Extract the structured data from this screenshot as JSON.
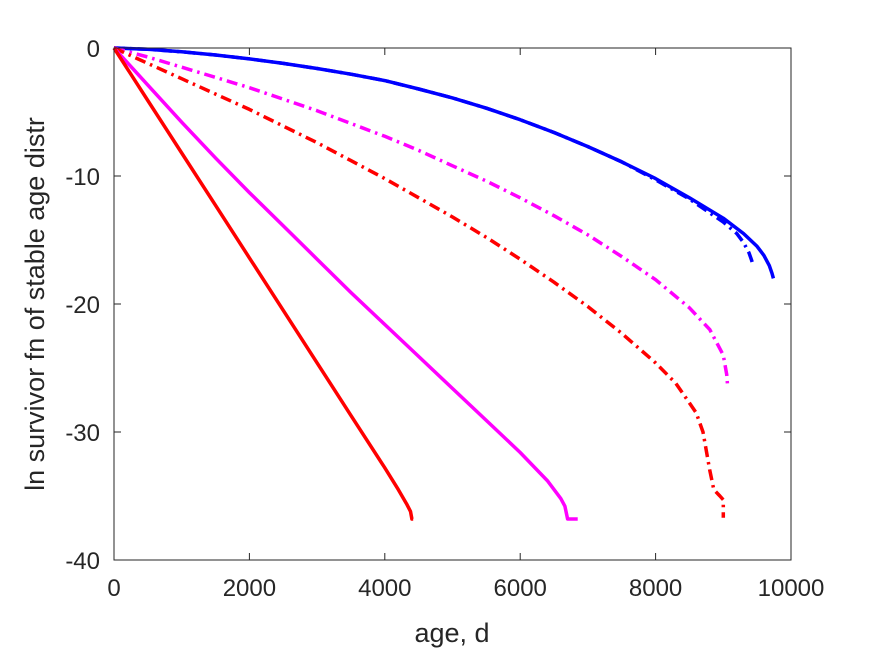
{
  "chart_data": {
    "type": "line",
    "title": "",
    "xlabel": "age, d",
    "ylabel": "ln survivor fn of stable age distr",
    "xlim": [
      0,
      10000
    ],
    "ylim": [
      -40,
      0
    ],
    "xticks": [
      0,
      2000,
      4000,
      6000,
      8000,
      10000
    ],
    "yticks": [
      -40,
      -30,
      -20,
      -10,
      0
    ],
    "xtick_labels": [
      "0",
      "2000",
      "4000",
      "6000",
      "8000",
      "10000"
    ],
    "ytick_labels": [
      "-40",
      "-30",
      "-20",
      "-10",
      "0"
    ],
    "grid": false,
    "legend": "none",
    "series": [
      {
        "color": "#0000ff",
        "style": "solid",
        "points": [
          [
            0,
            0
          ],
          [
            500,
            -0.1
          ],
          [
            1000,
            -0.3
          ],
          [
            1500,
            -0.55
          ],
          [
            2000,
            -0.85
          ],
          [
            2500,
            -1.2
          ],
          [
            3000,
            -1.6
          ],
          [
            3500,
            -2.05
          ],
          [
            4000,
            -2.55
          ],
          [
            4500,
            -3.2
          ],
          [
            5000,
            -3.9
          ],
          [
            5500,
            -4.7
          ],
          [
            6000,
            -5.6
          ],
          [
            6500,
            -6.6
          ],
          [
            7000,
            -7.7
          ],
          [
            7500,
            -8.9
          ],
          [
            8000,
            -10.2
          ],
          [
            8500,
            -11.7
          ],
          [
            9000,
            -13.3
          ],
          [
            9300,
            -14.5
          ],
          [
            9500,
            -15.5
          ],
          [
            9600,
            -16.2
          ],
          [
            9680,
            -17.0
          ],
          [
            9720,
            -17.6
          ],
          [
            9740,
            -18.0
          ]
        ]
      },
      {
        "color": "#0000ff",
        "style": "dashdot",
        "points": [
          [
            0,
            0
          ],
          [
            500,
            -0.1
          ],
          [
            1000,
            -0.3
          ],
          [
            1500,
            -0.55
          ],
          [
            2000,
            -0.85
          ],
          [
            2500,
            -1.2
          ],
          [
            3000,
            -1.6
          ],
          [
            3500,
            -2.05
          ],
          [
            4000,
            -2.55
          ],
          [
            4500,
            -3.2
          ],
          [
            5000,
            -3.9
          ],
          [
            5500,
            -4.7
          ],
          [
            6000,
            -5.6
          ],
          [
            6500,
            -6.6
          ],
          [
            7000,
            -7.7
          ],
          [
            7500,
            -8.9
          ],
          [
            8000,
            -10.3
          ],
          [
            8500,
            -11.8
          ],
          [
            9000,
            -13.6
          ],
          [
            9200,
            -14.5
          ],
          [
            9300,
            -15.2
          ],
          [
            9380,
            -16.0
          ],
          [
            9420,
            -16.6
          ],
          [
            9440,
            -17.0
          ]
        ]
      },
      {
        "color": "#ff00ff",
        "style": "dashdot",
        "points": [
          [
            0,
            0
          ],
          [
            500,
            -0.7
          ],
          [
            1000,
            -1.5
          ],
          [
            1500,
            -2.3
          ],
          [
            2000,
            -3.1
          ],
          [
            2500,
            -4.0
          ],
          [
            3000,
            -4.9
          ],
          [
            3500,
            -5.9
          ],
          [
            4000,
            -6.9
          ],
          [
            4500,
            -8.0
          ],
          [
            5000,
            -9.2
          ],
          [
            5500,
            -10.4
          ],
          [
            6000,
            -11.7
          ],
          [
            6500,
            -13.1
          ],
          [
            7000,
            -14.6
          ],
          [
            7500,
            -16.3
          ],
          [
            8000,
            -18.1
          ],
          [
            8500,
            -20.3
          ],
          [
            8800,
            -22.0
          ],
          [
            9000,
            -24.0
          ],
          [
            9050,
            -25.5
          ],
          [
            9060,
            -26.2
          ]
        ]
      },
      {
        "color": "#ff0000",
        "style": "dashdot",
        "points": [
          [
            0,
            0
          ],
          [
            500,
            -1.2
          ],
          [
            1000,
            -2.4
          ],
          [
            1500,
            -3.6
          ],
          [
            2000,
            -4.8
          ],
          [
            2500,
            -6.1
          ],
          [
            3000,
            -7.4
          ],
          [
            3500,
            -8.8
          ],
          [
            4000,
            -10.2
          ],
          [
            4500,
            -11.7
          ],
          [
            5000,
            -13.2
          ],
          [
            5500,
            -14.8
          ],
          [
            6000,
            -16.5
          ],
          [
            6500,
            -18.3
          ],
          [
            7000,
            -20.2
          ],
          [
            7500,
            -22.3
          ],
          [
            8000,
            -24.6
          ],
          [
            8300,
            -26.2
          ],
          [
            8600,
            -28.5
          ],
          [
            8700,
            -30.0
          ],
          [
            8750,
            -31.5
          ],
          [
            8800,
            -33.0
          ],
          [
            8860,
            -34.5
          ],
          [
            8950,
            -35.0
          ],
          [
            9000,
            -35.3
          ],
          [
            9000,
            -36.7
          ]
        ]
      },
      {
        "color": "#ff00ff",
        "style": "solid",
        "points": [
          [
            0,
            0
          ],
          [
            500,
            -2.9
          ],
          [
            1000,
            -5.8
          ],
          [
            1500,
            -8.6
          ],
          [
            2000,
            -11.3
          ],
          [
            2500,
            -13.9
          ],
          [
            3000,
            -16.5
          ],
          [
            3500,
            -19.1
          ],
          [
            4000,
            -21.6
          ],
          [
            4500,
            -24.1
          ],
          [
            5000,
            -26.6
          ],
          [
            5500,
            -29.1
          ],
          [
            6000,
            -31.6
          ],
          [
            6400,
            -33.8
          ],
          [
            6600,
            -35.2
          ],
          [
            6660,
            -35.8
          ],
          [
            6700,
            -36.8
          ],
          [
            6850,
            -36.8
          ]
        ]
      },
      {
        "color": "#ff0000",
        "style": "solid",
        "points": [
          [
            0,
            0
          ],
          [
            500,
            -4.1
          ],
          [
            1000,
            -8.2
          ],
          [
            1500,
            -12.3
          ],
          [
            2000,
            -16.4
          ],
          [
            2500,
            -20.5
          ],
          [
            3000,
            -24.6
          ],
          [
            3500,
            -28.7
          ],
          [
            4000,
            -32.8
          ],
          [
            4200,
            -34.5
          ],
          [
            4320,
            -35.6
          ],
          [
            4380,
            -36.2
          ],
          [
            4400,
            -36.8
          ],
          [
            4420,
            -36.8
          ]
        ]
      }
    ]
  }
}
